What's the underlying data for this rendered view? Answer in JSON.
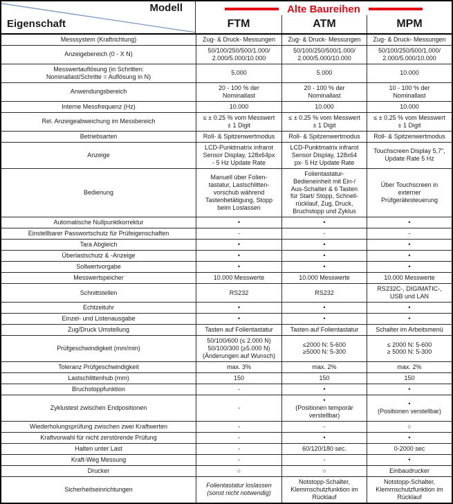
{
  "header": {
    "model_label": "Modell",
    "property_label": "Eigenschaft",
    "series_title": "Alte Baureihen",
    "columns": [
      "FTM",
      "ATM",
      "MPM"
    ]
  },
  "colors": {
    "accent_red": "#e30613",
    "diagonal_blue": "#7f9fc6"
  },
  "rows": [
    {
      "label": "Messsystem (Kraftrichtung)",
      "values": [
        "Zug- & Druck- Messungen",
        "Zug- & Druck- Messungen",
        "Zug- & Druck- Messungen"
      ]
    },
    {
      "label": "Anzeigebereich (0 - X N)",
      "values": [
        "50/100/250/500/1.000/\n2.000/5.000/10.000",
        "50/100/250/500/1.000/\n2.000/5.000/10.000",
        "50/100/250/500/1.000/\n2.000/5.000/10.000"
      ]
    },
    {
      "label": "Messwertauflösung (in Schritten:\nNominallast/Schritte = Auflösung in N)",
      "values": [
        "5.000",
        "5.000",
        "10.000"
      ]
    },
    {
      "label": "Anwendungsbereich",
      "values": [
        "20 - 100 % der\nNominallast",
        "20 - 100 % der\nNominallast",
        "10 - 100 % der\nNominallast"
      ]
    },
    {
      "label": "Interne Messfrequenz (Hz)",
      "values": [
        "10.000",
        "10.000",
        "10.000"
      ]
    },
    {
      "label": "Rel. Anzeigeabweichung im Messbereich",
      "values": [
        "≤ ± 0.25 % vom Messwert\n± 1 Digit",
        "≤ ± 0.25 % vom Messwert\n± 1 Digit",
        "≤ ± 0.25 % vom Messwert\n± 1 Digit"
      ]
    },
    {
      "label": "Betriebsarten",
      "values": [
        "Roll- & Spitzenwertmodus",
        "Roll- & Spitzenwertmodus",
        "Roll- & Spitzenwertmodus"
      ]
    },
    {
      "label": "Anzeige",
      "values": [
        "LCD-Punktmatrix infrarot\nSensor Display, 128x64px\n- 5 Hz Update Rate",
        "LCD-Punktmatrix infrarot\nSensor Display, 128x64\npx- 5 Hz Update Rate",
        "Touchscreen Display 5,7\",\nUpdate Rate 5 Hz"
      ]
    },
    {
      "label": "Bedienung",
      "values": [
        "Manuell über Folien-\ntastatur, Lastschlitten-\nvorschub während\nTastenbetätigung, Stopp\nbeim Loslassen",
        "Folientastatur-\nBedieneinheit mit Ein-/\nAus-Schalter & 6 Tasten\nfür Start/ Stopp, Schnell-\nrücklauf, Zug, Druck,\nBruchstopp und Zyklus",
        "Über Touchscreen in\nexterner\nPrüfgerätesteuerung"
      ]
    },
    {
      "label": "Automatische Nullpunktkorrektur",
      "values": [
        "•",
        "•",
        "•"
      ]
    },
    {
      "label": "Einstellbarer Passwortschutz für Prüfeigenschaften",
      "values": [
        "-",
        "-",
        "-"
      ]
    },
    {
      "label": "Tara Abgleich",
      "values": [
        "•",
        "•",
        "•"
      ]
    },
    {
      "label": "Überlastschutz & -Anzeige",
      "values": [
        "•",
        "•",
        "•"
      ]
    },
    {
      "label": "Sollwertvorgabe",
      "values": [
        "•",
        "•",
        "•"
      ]
    },
    {
      "label": "Messwertspeicher",
      "values": [
        "10.000 Messwerte",
        "10.000 Messwerte",
        "10.000 Messwerte"
      ]
    },
    {
      "label": "Schnittstellen",
      "values": [
        "RS232",
        "RS232",
        "RS232C-, DIGIMATIC-,\nUSB und LAN"
      ]
    },
    {
      "label": "Echtzeituhr",
      "values": [
        "•",
        "•",
        "•"
      ]
    },
    {
      "label": "Einzel- und Listenausgabe",
      "values": [
        "•",
        "•",
        "•"
      ]
    },
    {
      "label": "Zug/Druck Umstellung",
      "values": [
        "Tasten auf Folientastatur",
        "Tasten auf Folientastatur",
        "Schalter im Arbeitsmenü"
      ]
    },
    {
      "label": "Prüfgeschwindigkeit (mm/min)",
      "values": [
        "50/100/600 (≤ 2.000 N)\n50/100/300 (≥5.000 N)\n(Änderungen auf Wunsch)",
        "≤2000 N: 5-600\n≥5000 N: 5-300",
        "≤ 2000 N: 5-600\n≥ 5000 N: 5-300"
      ]
    },
    {
      "label": "Toleranz Prüfgeschwindigkeit",
      "values": [
        "max. 3%",
        "max. 2%",
        "max. 2%"
      ]
    },
    {
      "label": "Lastschlittenhub (mm)",
      "values": [
        "150",
        "150",
        "150"
      ]
    },
    {
      "label": "Bruchstoppfunktion",
      "values": [
        "-",
        "•",
        "•"
      ]
    },
    {
      "label": "Zyklustest zwischen Endpositionen",
      "values": [
        "-",
        "•\n(Positionen temporär\nverstellbar)",
        "•\n(Positionen verstellbar)"
      ]
    },
    {
      "label": "Wiederholungsprüfung zwischen zwei Kraftwerten",
      "values": [
        "-",
        "-",
        "○"
      ]
    },
    {
      "label": "Kraftvorwahl für nicht zerstörende Prüfung",
      "values": [
        "-",
        "•",
        "•"
      ]
    },
    {
      "label": "Halten unter Last",
      "values": [
        "-",
        "60/120/180 sec.",
        "0-2000 sec"
      ]
    },
    {
      "label": "Kraft-Weg Messung",
      "values": [
        "-",
        "-",
        "•"
      ]
    },
    {
      "label": "Drucker",
      "values": [
        "○",
        "○",
        "Einbaudrucker"
      ]
    },
    {
      "label": "Sicherheitseinrichtungen",
      "values": [
        "Folientastatur loslassen\n(sonst nicht notwendig)",
        "Notstopp-Schalter,\nKlemmschutzfunktion im\nRücklauf",
        "Notstopp-Schalter,\nKlemmschutzfunktion im\nRücklauf"
      ],
      "italic": [
        true,
        false,
        false
      ]
    }
  ]
}
